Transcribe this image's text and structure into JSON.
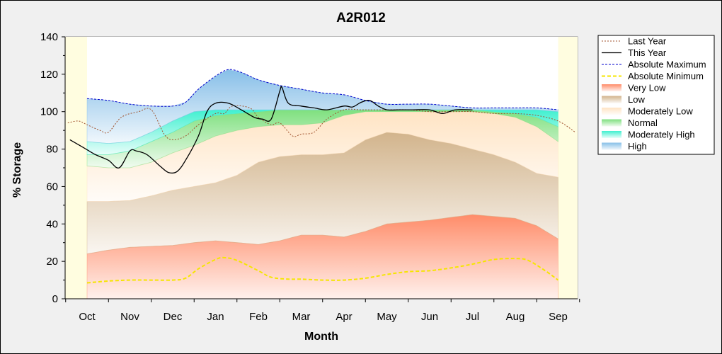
{
  "chart_data": {
    "type": "area",
    "title": "A2R012",
    "xlabel": "Month",
    "ylabel": "% Storage",
    "x_ticks": [
      "Oct",
      "Nov",
      "Dec",
      "Jan",
      "Feb",
      "Mar",
      "Apr",
      "May",
      "Jun",
      "Jul",
      "Aug",
      "Sep"
    ],
    "ylim": [
      0,
      140
    ],
    "y_ticks": [
      0,
      20,
      40,
      60,
      80,
      100,
      120,
      140
    ],
    "legend_position": "right",
    "grid": false,
    "plot_background": "#fffde0",
    "bands": [
      {
        "name": "Very Low",
        "color": "#ff8c69",
        "lower": [
          [
            0,
            0
          ],
          [
            12,
            0
          ]
        ],
        "upper": [
          [
            0,
            24
          ],
          [
            0.5,
            26
          ],
          [
            1,
            27.5
          ],
          [
            1.5,
            28
          ],
          [
            2,
            28.5
          ],
          [
            2.5,
            30
          ],
          [
            3,
            31
          ],
          [
            3.5,
            30
          ],
          [
            4,
            29
          ],
          [
            4.5,
            31
          ],
          [
            5,
            34
          ],
          [
            5.5,
            34
          ],
          [
            6,
            33
          ],
          [
            6.5,
            36
          ],
          [
            7,
            40
          ],
          [
            7.5,
            41
          ],
          [
            8,
            42
          ],
          [
            8.5,
            43.5
          ],
          [
            9,
            45
          ],
          [
            9.5,
            44
          ],
          [
            10,
            43
          ],
          [
            10.5,
            39
          ],
          [
            11,
            32
          ]
        ]
      },
      {
        "name": "Low",
        "color": "#d2b48c",
        "lower": "Very Low",
        "upper": [
          [
            0,
            52
          ],
          [
            0.5,
            52
          ],
          [
            1,
            52.5
          ],
          [
            1.5,
            55
          ],
          [
            2,
            58
          ],
          [
            2.5,
            60
          ],
          [
            3,
            62
          ],
          [
            3.5,
            66
          ],
          [
            4,
            73
          ],
          [
            4.5,
            76
          ],
          [
            5,
            77
          ],
          [
            5.5,
            77
          ],
          [
            6,
            78
          ],
          [
            6.5,
            85
          ],
          [
            7,
            89
          ],
          [
            7.5,
            88
          ],
          [
            8,
            85
          ],
          [
            8.5,
            83
          ],
          [
            9,
            80
          ],
          [
            9.5,
            77
          ],
          [
            10,
            73
          ],
          [
            10.5,
            67
          ],
          [
            11,
            65
          ]
        ]
      },
      {
        "name": "Moderately Low",
        "color": "#ffe4c4",
        "lower": "Low",
        "upper": [
          [
            0,
            71
          ],
          [
            0.5,
            70
          ],
          [
            1,
            70
          ],
          [
            1.5,
            73
          ],
          [
            2,
            78
          ],
          [
            2.5,
            82
          ],
          [
            3,
            87
          ],
          [
            3.5,
            90
          ],
          [
            4,
            92
          ],
          [
            4.5,
            93
          ],
          [
            5,
            93
          ],
          [
            5.5,
            94
          ],
          [
            6,
            98
          ],
          [
            6.5,
            100
          ],
          [
            7,
            100
          ],
          [
            7.5,
            100
          ],
          [
            8,
            100
          ],
          [
            8.5,
            100
          ],
          [
            9,
            100
          ],
          [
            9.5,
            99
          ],
          [
            10,
            97
          ],
          [
            10.5,
            92
          ],
          [
            11,
            84
          ]
        ]
      },
      {
        "name": "Normal",
        "color": "#7fe07f",
        "lower": "Moderately Low",
        "upper": [
          [
            0,
            77
          ],
          [
            0.5,
            77
          ],
          [
            1,
            79
          ],
          [
            1.5,
            84
          ],
          [
            2,
            89
          ],
          [
            2.5,
            95
          ],
          [
            3,
            98
          ],
          [
            3.5,
            99
          ],
          [
            4,
            100
          ],
          [
            4.5,
            101
          ],
          [
            5,
            101
          ],
          [
            5.5,
            101
          ],
          [
            6,
            101
          ],
          [
            6.5,
            101
          ],
          [
            7,
            101
          ],
          [
            7.5,
            101
          ],
          [
            8,
            101
          ],
          [
            8.5,
            101
          ],
          [
            9,
            101
          ],
          [
            9.5,
            100
          ],
          [
            10,
            99
          ],
          [
            10.5,
            97
          ],
          [
            11,
            92
          ]
        ]
      },
      {
        "name": "Moderately High",
        "color": "#40f0d0",
        "lower": "Normal",
        "upper": [
          [
            0,
            84
          ],
          [
            0.5,
            83
          ],
          [
            1,
            84
          ],
          [
            1.5,
            89
          ],
          [
            2,
            95
          ],
          [
            2.5,
            100
          ],
          [
            3,
            101
          ],
          [
            3.5,
            101
          ],
          [
            4,
            101
          ],
          [
            4.5,
            101
          ],
          [
            5,
            101
          ],
          [
            5.5,
            101
          ],
          [
            6,
            101
          ],
          [
            6.5,
            101
          ],
          [
            7,
            101
          ],
          [
            7.5,
            101
          ],
          [
            8,
            101
          ],
          [
            8.5,
            101
          ],
          [
            9,
            101
          ],
          [
            9.5,
            101
          ],
          [
            10,
            101
          ],
          [
            10.5,
            101
          ],
          [
            11,
            100
          ]
        ]
      },
      {
        "name": "High",
        "color": "#87bfe8",
        "lower": "Moderately High",
        "upper": "Absolute Maximum"
      }
    ],
    "series": [
      {
        "name": "Absolute Maximum",
        "color": "#0000cc",
        "dash": "3,2",
        "points": [
          [
            0,
            107
          ],
          [
            0.5,
            106
          ],
          [
            1,
            104
          ],
          [
            1.5,
            103
          ],
          [
            2,
            103
          ],
          [
            2.3,
            105
          ],
          [
            2.6,
            112
          ],
          [
            3,
            119
          ],
          [
            3.3,
            122.5
          ],
          [
            3.6,
            121
          ],
          [
            4,
            117
          ],
          [
            4.5,
            114
          ],
          [
            5,
            112
          ],
          [
            5.5,
            110
          ],
          [
            6,
            109
          ],
          [
            6.5,
            106
          ],
          [
            7,
            104
          ],
          [
            7.5,
            104
          ],
          [
            8,
            104
          ],
          [
            8.5,
            103
          ],
          [
            9,
            102
          ],
          [
            9.5,
            102
          ],
          [
            10,
            102
          ],
          [
            10.5,
            102
          ],
          [
            11,
            101
          ]
        ]
      },
      {
        "name": "Absolute Minimum",
        "color": "#f5e600",
        "dash": "5,3",
        "width": 2,
        "points": [
          [
            0,
            8.5
          ],
          [
            0.5,
            9.5
          ],
          [
            1,
            10
          ],
          [
            1.5,
            10
          ],
          [
            2,
            10
          ],
          [
            2.3,
            11
          ],
          [
            2.6,
            16
          ],
          [
            3,
            21
          ],
          [
            3.2,
            22
          ],
          [
            3.5,
            20.5
          ],
          [
            4,
            15
          ],
          [
            4.3,
            11.5
          ],
          [
            4.7,
            10.5
          ],
          [
            5,
            10.5
          ],
          [
            5.5,
            10
          ],
          [
            6,
            10
          ],
          [
            6.5,
            11
          ],
          [
            7,
            13
          ],
          [
            7.5,
            14.5
          ],
          [
            8,
            15
          ],
          [
            8.5,
            16.5
          ],
          [
            9,
            18.5
          ],
          [
            9.5,
            21
          ],
          [
            10,
            21.5
          ],
          [
            10.3,
            20.5
          ],
          [
            10.7,
            15
          ],
          [
            11,
            10
          ]
        ]
      },
      {
        "name": "Last Year",
        "color": "#a0522d",
        "dash": "2,2",
        "points": [
          [
            -0.45,
            94
          ],
          [
            -0.2,
            95
          ],
          [
            0,
            93
          ],
          [
            0.3,
            90
          ],
          [
            0.5,
            89
          ],
          [
            0.8,
            97
          ],
          [
            1.2,
            100
          ],
          [
            1.5,
            101
          ],
          [
            1.8,
            88
          ],
          [
            2,
            85
          ],
          [
            2.3,
            87
          ],
          [
            2.6,
            93
          ],
          [
            3,
            99
          ],
          [
            3.2,
            99
          ],
          [
            3.4,
            103
          ],
          [
            3.8,
            102
          ],
          [
            4,
            97
          ],
          [
            4.3,
            93
          ],
          [
            4.5,
            94
          ],
          [
            4.8,
            87
          ],
          [
            5,
            88
          ],
          [
            5.3,
            89
          ],
          [
            5.6,
            96
          ],
          [
            6,
            101
          ],
          [
            6.4,
            101
          ],
          [
            6.7,
            101
          ],
          [
            7,
            101
          ],
          [
            7.5,
            101
          ],
          [
            8,
            100
          ],
          [
            8.5,
            100
          ],
          [
            9,
            100
          ],
          [
            9.5,
            99
          ],
          [
            10,
            99
          ],
          [
            10.5,
            98
          ],
          [
            11,
            95
          ],
          [
            11.4,
            89
          ]
        ]
      },
      {
        "name": "This Year",
        "color": "#000000",
        "dash": "none",
        "width": 1.3,
        "points": [
          [
            -0.4,
            85
          ],
          [
            -0.1,
            81
          ],
          [
            0.2,
            77
          ],
          [
            0.5,
            74
          ],
          [
            0.75,
            70
          ],
          [
            1,
            79
          ],
          [
            1.15,
            79
          ],
          [
            1.4,
            77
          ],
          [
            1.7,
            71
          ],
          [
            1.9,
            67.5
          ],
          [
            2.1,
            68
          ],
          [
            2.3,
            74
          ],
          [
            2.6,
            87
          ],
          [
            2.8,
            100
          ],
          [
            3,
            104.5
          ],
          [
            3.3,
            104.5
          ],
          [
            3.6,
            101
          ],
          [
            3.9,
            97
          ],
          [
            4.1,
            96
          ],
          [
            4.3,
            96
          ],
          [
            4.5,
            111
          ],
          [
            4.55,
            113
          ],
          [
            4.7,
            104.5
          ],
          [
            5,
            103
          ],
          [
            5.3,
            102
          ],
          [
            5.6,
            101
          ],
          [
            6,
            103
          ],
          [
            6.2,
            102.5
          ],
          [
            6.4,
            105
          ],
          [
            6.6,
            106
          ],
          [
            6.8,
            103
          ],
          [
            7,
            101
          ],
          [
            7.3,
            101
          ],
          [
            7.6,
            101
          ],
          [
            8,
            101
          ],
          [
            8.3,
            99
          ],
          [
            8.6,
            101
          ],
          [
            9,
            101
          ]
        ]
      }
    ],
    "legend": [
      "Last Year",
      "This Year",
      "Absolute Maximum",
      "Absolute Minimum",
      "Very Low",
      "Low",
      "Moderately Low",
      "Normal",
      "Moderately High",
      "High"
    ]
  }
}
